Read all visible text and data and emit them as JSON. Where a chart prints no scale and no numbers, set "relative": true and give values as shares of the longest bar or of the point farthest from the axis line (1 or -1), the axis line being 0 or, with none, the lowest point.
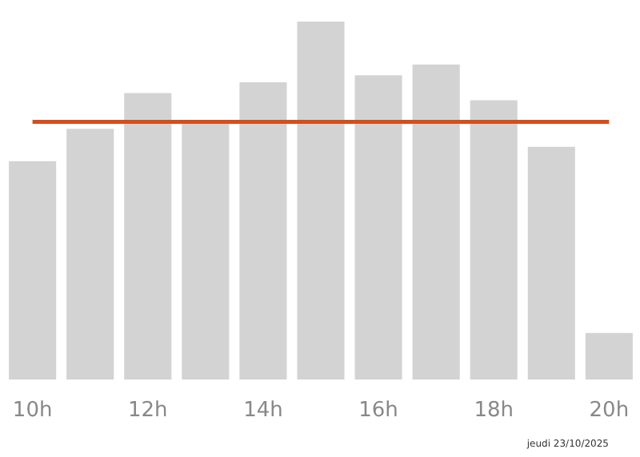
{
  "chart_data": {
    "type": "bar",
    "relative": true,
    "x": [
      10,
      11,
      12,
      13,
      14,
      15,
      16,
      17,
      18,
      19,
      20
    ],
    "values": [
      0.61,
      0.7,
      0.8,
      0.72,
      0.83,
      1,
      0.85,
      0.88,
      0.78,
      0.65,
      0.13
    ],
    "color": "#d3d3d3",
    "xlim": [
      9.45,
      20.55
    ],
    "xticks": [
      {
        "value": 10,
        "label": "10h"
      },
      {
        "value": 12,
        "label": "12h"
      },
      {
        "value": 14,
        "label": "14h"
      },
      {
        "value": 16,
        "label": "16h"
      },
      {
        "value": 18,
        "label": "18h"
      },
      {
        "value": 20,
        "label": "20h"
      }
    ],
    "ref_lines": [
      {
        "axis": "y",
        "value": 0.72,
        "label": null,
        "color": "#d2501e"
      }
    ],
    "grid": false,
    "annotations": [
      "jeudi 23/10/2025"
    ]
  }
}
